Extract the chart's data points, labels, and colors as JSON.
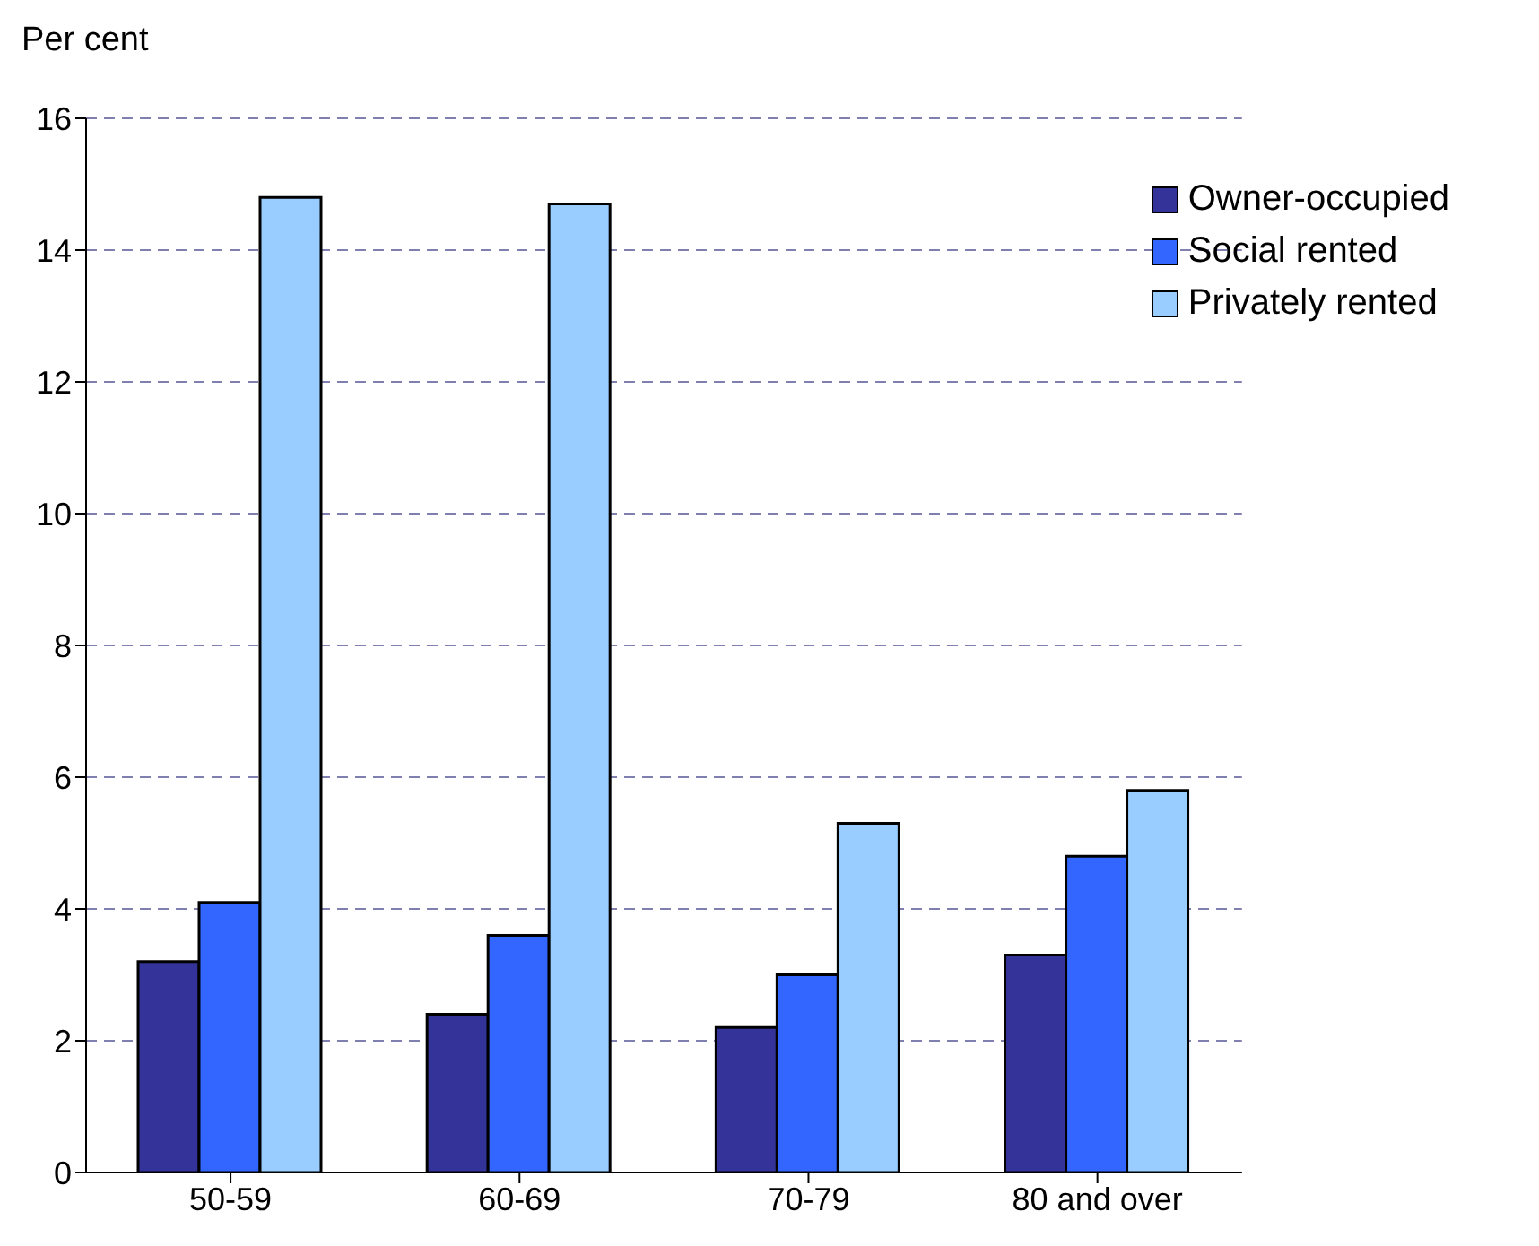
{
  "chart_data": {
    "type": "bar",
    "ylabel": "Per cent",
    "categories": [
      "50-59",
      "60-69",
      "70-79",
      "80 and over"
    ],
    "series": [
      {
        "name": "Owner-occupied",
        "color": "#333399",
        "values": [
          3.2,
          2.4,
          2.2,
          3.3
        ]
      },
      {
        "name": "Social rented",
        "color": "#3366ff",
        "values": [
          4.1,
          3.6,
          3.0,
          4.8
        ]
      },
      {
        "name": "Privately rented",
        "color": "#99ccff",
        "values": [
          14.8,
          14.7,
          5.3,
          5.8
        ]
      }
    ],
    "ylim": [
      0,
      16
    ],
    "yticks": [
      0,
      2,
      4,
      6,
      8,
      10,
      12,
      14,
      16
    ],
    "grid": "y",
    "legend": "top right"
  }
}
